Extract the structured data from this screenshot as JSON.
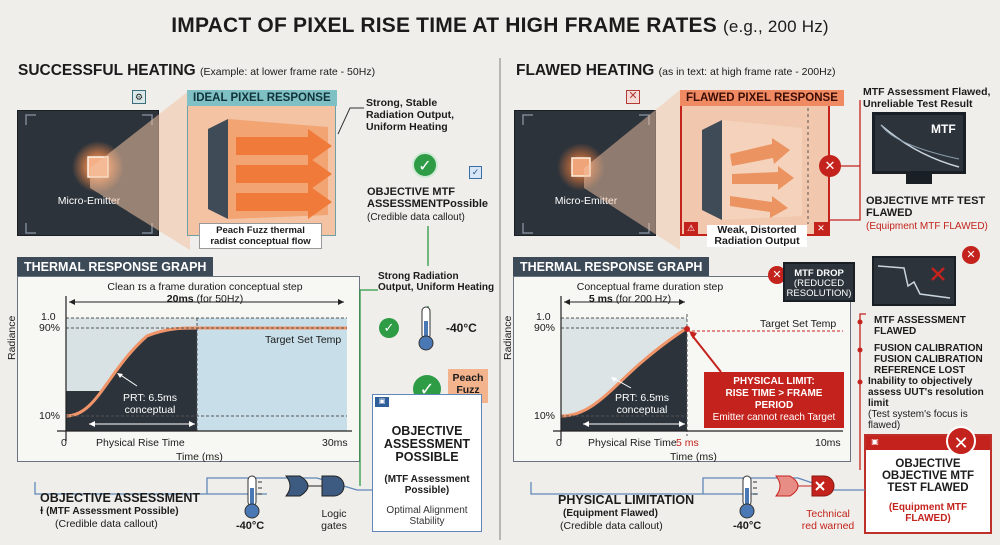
{
  "title": {
    "main": "IMPACT OF PIXEL RISE TIME AT HIGH FRAME RATES",
    "sub": "(e.g., 200 Hz)"
  },
  "left": {
    "heading": "SUCCESSFUL HEATING",
    "heading_sub": "(Example: at lower frame rate - 50Hz)",
    "panel_tag": "IDEAL PIXEL RESPONSE",
    "micro_emitter": "Micro-Emitter",
    "peach_fuzz_caption": "Peach Fuzz thermal radist conceptual flow",
    "strong_output": "Strong, Stable Radiation Output, Uniform Heating",
    "mtf_possible": "OBJECTIVE MTF ASSESSMENTPossible",
    "credible": "(Credible data callout)",
    "graph_title": "THERMAL RESPONSE GRAPH",
    "frame_note_1": "Clean ɪs a frame duration conceptual step",
    "frame_note_2_bold": "20ms",
    "frame_note_2": "(for 50Hz)",
    "target_temp": "Target Set Temp",
    "prt_1": "PRT: 6.5ms",
    "prt_2": "conceptual",
    "y_axis": "Radiance",
    "y_ticks": [
      "1.0",
      "90%",
      "10%"
    ],
    "x_ticks": [
      "0",
      "30ms"
    ],
    "x_rise": "Physical Rise Time",
    "x_axis": "Time (ms)",
    "strong_output_2": "Strong Radiation Output, Uniform Heating",
    "temp": "-40°C",
    "peach_fuzz_tag": "Peach Fuzz",
    "assess_title": "OBJECTIVE ASSESSMENT POSSIBLE",
    "assess_sub": "(MTF Assessment Possible)",
    "assess_note": "Optimal Alignment Stability",
    "bottom_title": "OBJECTIVE ASSESSMENT",
    "bottom_sub": "ɫ (MTF Assessment Possible)",
    "bottom_credible": "(Credible data callout)",
    "bottom_temp": "-40°C",
    "logic_gates": "Logic gates"
  },
  "right": {
    "heading": "FLAWED HEATING",
    "heading_sub": "(as in text: at high frame rate - 200Hz)",
    "panel_tag": "FLAWED PIXEL RESPONSE",
    "micro_emitter": "Micro-Emitter",
    "weak_output": "Weak, Distorted Radiation Output",
    "mtf_flawed_top": "MTF Assessment Flawed, Unreliable Test Result",
    "mtf_screen": "MTF",
    "test_flawed": "OBJECTIVE MTF TEST FLAWED",
    "equip_flawed": "(Equipment MTF FLAWED)",
    "graph_title": "THERMAL RESPONSE GRAPH",
    "frame_note_1": "Conceptual frame duration step",
    "frame_note_2_bold": "5 ms",
    "frame_note_2": "(for 200 Hz)",
    "target_temp": "Target Set Temp",
    "prt_1": "PRT: 6.5ms",
    "prt_2": "conceptual",
    "y_axis": "Radiance",
    "y_ticks": [
      "1.0",
      "90%",
      "10%"
    ],
    "x_ticks": [
      "0",
      "5 ms",
      "10ms"
    ],
    "x_rise": "Physical Rise Time",
    "x_axis": "Time (ms)",
    "limit_1": "PHYSICAL LIMIT:",
    "limit_2": "RISE TIME > FRAME PERIOD",
    "limit_3": "Emitter cannot reach Target",
    "mtf_drop_1": "MTF DROP",
    "mtf_drop_2": "(REDUCED RESOLUTION)",
    "list_1": "MTF ASSESSMENT FLAWED",
    "list_2": "FUSION CALIBRATION FUSION CALIBRATION REFERENCE LOST",
    "list_3": "Inability to objectively assess UUT's resolution limit",
    "list_3b": "(Test system's focus is flawed)",
    "final_title": "OBJECTIVE OBJECTIVE MTF TEST FLAWED",
    "final_sub": "(Equipment MTF FLAWED)",
    "bottom_title": "PHYSICAL LIMITATION",
    "bottom_sub": "(Equipment Flawed)",
    "bottom_credible": "(Credible data callout)",
    "bottom_temp": "-40°C",
    "warned": "Technical red warned"
  },
  "colors": {
    "peach": "#f3c3a3",
    "orange": "#f08a4b",
    "green": "#2e9b45",
    "red": "#c4231d",
    "navy": "#2c333b",
    "blue": "#5f88b8",
    "graph_fill_blue": "#bcd7e6"
  }
}
